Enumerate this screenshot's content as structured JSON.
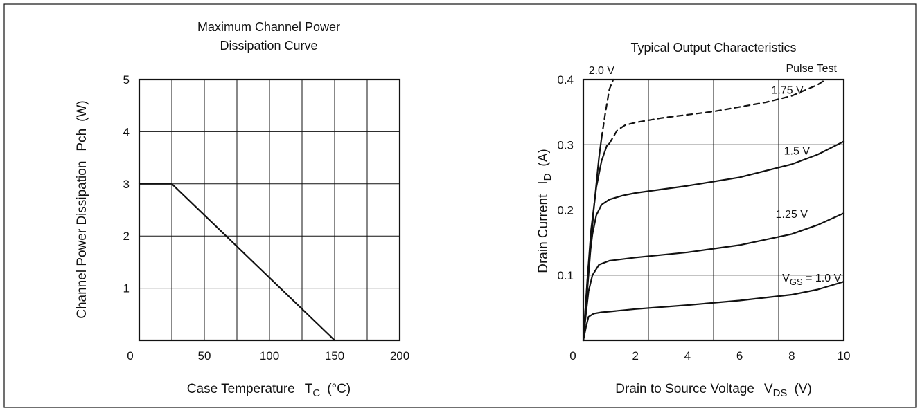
{
  "chart_data": [
    {
      "type": "line",
      "title_line1": "Maximum Channel Power",
      "title_line2": "Dissipation Curve",
      "xlabel": "Case Temperature",
      "xlabel_symbol": "T",
      "xlabel_sub": "C",
      "xlabel_unit": "(°C)",
      "ylabel": "Channel Power Dissipation",
      "ylabel_symbol": "Pch",
      "ylabel_unit": "(W)",
      "xlim": [
        0,
        200
      ],
      "ylim": [
        0,
        5
      ],
      "grid": true,
      "x_ticks": [
        0,
        50,
        100,
        150,
        200
      ],
      "y_ticks": [
        1,
        2,
        3,
        4,
        5
      ],
      "series": [
        {
          "x": [
            0,
            25,
            150
          ],
          "y": [
            3,
            3,
            0
          ]
        }
      ]
    },
    {
      "type": "line",
      "title": "Typical Output Characteristics",
      "annotation": "Pulse Test",
      "xlabel": "Drain to Source Voltage",
      "xlabel_symbol": "V",
      "xlabel_sub": "DS",
      "xlabel_unit": "(V)",
      "ylabel": "Drain Current",
      "ylabel_symbol": "I",
      "ylabel_sub": "D",
      "ylabel_unit": "(A)",
      "xlim": [
        0,
        10
      ],
      "ylim": [
        0,
        0.4
      ],
      "grid": true,
      "x_ticks": [
        0,
        2,
        4,
        6,
        8,
        10
      ],
      "y_ticks": [
        0.1,
        0.2,
        0.3,
        0.4
      ],
      "series": [
        {
          "name": "1.0 V",
          "label_prefix": "V",
          "label_sub": "GS",
          "label_suffix": " = 1.0 V",
          "x": [
            0,
            0.1,
            0.2,
            0.4,
            0.7,
            1,
            2,
            4,
            6,
            8,
            9,
            10
          ],
          "y": [
            0,
            0.02,
            0.036,
            0.041,
            0.043,
            0.044,
            0.048,
            0.054,
            0.061,
            0.07,
            0.078,
            0.09
          ]
        },
        {
          "name": "1.25 V",
          "x": [
            0,
            0.1,
            0.2,
            0.35,
            0.6,
            1,
            2,
            4,
            6,
            8,
            9,
            10
          ],
          "y": [
            0,
            0.04,
            0.075,
            0.1,
            0.116,
            0.122,
            0.127,
            0.135,
            0.146,
            0.163,
            0.177,
            0.195
          ]
        },
        {
          "name": "1.5 V",
          "x": [
            0,
            0.1,
            0.2,
            0.35,
            0.5,
            0.7,
            1,
            1.5,
            2,
            4,
            6,
            8,
            9,
            10
          ],
          "y": [
            0,
            0.06,
            0.115,
            0.163,
            0.192,
            0.208,
            0.216,
            0.222,
            0.226,
            0.237,
            0.25,
            0.27,
            0.285,
            0.305
          ]
        },
        {
          "name": "1.75 V",
          "x": [
            0,
            0.15,
            0.3,
            0.5,
            0.7,
            0.9,
            1.0
          ],
          "y": [
            0,
            0.09,
            0.17,
            0.235,
            0.275,
            0.298,
            0.302
          ],
          "dashed_x": [
            1.0,
            1.3,
            1.6,
            2,
            3,
            4,
            5,
            6,
            7,
            8,
            9,
            9.3
          ],
          "dashed_y": [
            0.302,
            0.322,
            0.33,
            0.334,
            0.341,
            0.346,
            0.351,
            0.358,
            0.365,
            0.375,
            0.392,
            0.4
          ]
        },
        {
          "name": "2.0 V",
          "x": [
            0,
            0.2,
            0.4,
            0.6,
            0.7
          ],
          "y": [
            0,
            0.1,
            0.2,
            0.28,
            0.31
          ],
          "dashed_x": [
            0.7,
            0.85,
            1.0,
            1.15
          ],
          "dashed_y": [
            0.31,
            0.35,
            0.385,
            0.4
          ]
        }
      ]
    }
  ]
}
